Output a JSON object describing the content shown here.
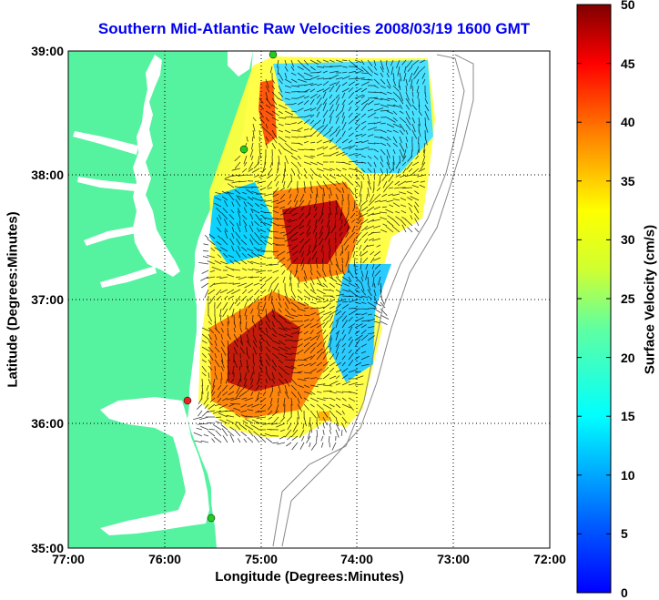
{
  "title": "Southern Mid-Atlantic Raw Velocities 2008/03/19 1600 GMT",
  "x_axis": {
    "label": "Longitude (Degrees:Minutes)",
    "ticks": [
      "77:00",
      "76:00",
      "75:00",
      "74:00",
      "73:00",
      "72:00"
    ]
  },
  "y_axis": {
    "label": "Latitude (Degrees:Minutes)",
    "ticks": [
      "39:00",
      "38:00",
      "37:00",
      "36:00",
      "35:00"
    ]
  },
  "colorbar": {
    "label": "Surface Velocity (cm/s)",
    "ticks": [
      "50",
      "45",
      "40",
      "35",
      "30",
      "25",
      "20",
      "15",
      "10",
      "5",
      "0"
    ],
    "range": [
      0,
      50
    ],
    "colormap": "jet"
  },
  "colors": {
    "land": "#55f2a0",
    "water": "#ffffff",
    "title": "#0000ee",
    "station_green": "#22cc22",
    "station_red": "#ee2222"
  },
  "map": {
    "lon_range": [
      -77,
      -72
    ],
    "lat_range": [
      35,
      39
    ],
    "grid": true
  }
}
